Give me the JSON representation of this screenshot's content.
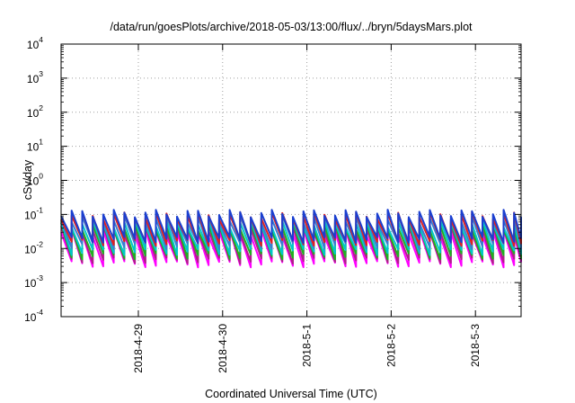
{
  "chart_data": {
    "type": "line",
    "title": "/data/run/goesPlots/archive/2018-05-03/13:00/flux/../bryn/5daysMars.plot",
    "xlabel": "Coordinated Universal Time (UTC)",
    "ylabel": "cSv/day",
    "y_scale": "log",
    "ylim": [
      0.0001,
      10000
    ],
    "xlim": [
      "2018-04-28 02:00",
      "2018-05-03 13:00"
    ],
    "x_ticks": [
      "2018-4-29",
      "2018-4-30",
      "2018-5-1",
      "2018-5-2",
      "2018-5-3"
    ],
    "y_ticks": [
      {
        "base": "10",
        "exp": "-4"
      },
      {
        "base": "10",
        "exp": "-3"
      },
      {
        "base": "10",
        "exp": "-2"
      },
      {
        "base": "10",
        "exp": "-1"
      },
      {
        "base": "10",
        "exp": "0"
      },
      {
        "base": "10",
        "exp": "1"
      },
      {
        "base": "10",
        "exp": "2"
      },
      {
        "base": "10",
        "exp": "3"
      },
      {
        "base": "10",
        "exp": "4"
      }
    ],
    "grid": true,
    "legend": "none",
    "sawtooth_period_hours": 3,
    "series": [
      {
        "color": "#ff00ff",
        "peak": 0.03,
        "trough": 0.0035
      },
      {
        "color": "#b01e8a",
        "peak": 0.038,
        "trough": 0.0045
      },
      {
        "color": "#20b020",
        "peak": 0.045,
        "trough": 0.006
      },
      {
        "color": "#00c8c8",
        "peak": 0.055,
        "trough": 0.008
      },
      {
        "color": "#3a7fd0",
        "peak": 0.075,
        "trough": 0.012
      },
      {
        "color": "#e02020",
        "peak": 0.095,
        "trough": 0.015
      },
      {
        "color": "#1a3fd0",
        "peak": 0.11,
        "trough": 0.018
      }
    ]
  }
}
